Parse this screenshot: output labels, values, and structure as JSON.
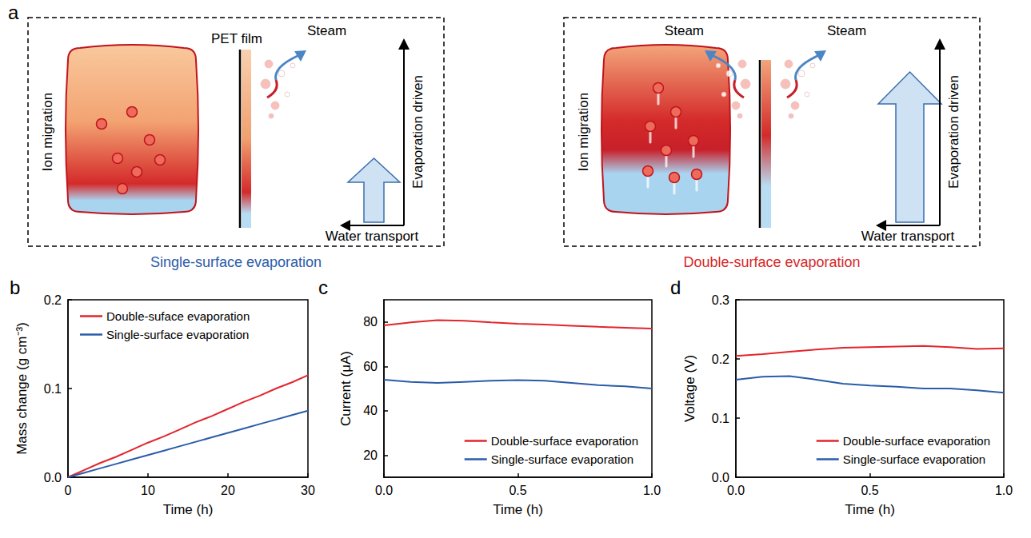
{
  "diagram": {
    "letter": "a",
    "panels": [
      {
        "caption": "Single-surface evaporation",
        "color": "#2a5caa",
        "ion_label": "Ion migration",
        "film_label": "PET film",
        "steam_labels": [
          "Steam"
        ],
        "vertical_arrow_label": "Evaporation driven",
        "horizontal_arrow_label": "Water transport"
      },
      {
        "caption": "Double-surface evaporation",
        "color": "#d62728",
        "ion_label": "Ion migration",
        "steam_labels": [
          "Steam",
          "Steam"
        ],
        "vertical_arrow_label": "Evaporation driven",
        "horizontal_arrow_label": "Water transport"
      }
    ]
  },
  "chart_data": [
    {
      "letter": "b",
      "type": "line",
      "x_label": "Time (h)",
      "y_label": "Mass change (g cm⁻³)",
      "xlim": [
        0,
        30
      ],
      "xticks": [
        0,
        10,
        20,
        30
      ],
      "ylim": [
        0,
        0.2
      ],
      "yticks": [
        {
          "value": 0,
          "label": "0.0"
        },
        {
          "value": 0.1,
          "label": "0.1"
        },
        {
          "value": 0.2,
          "label": "0.2"
        }
      ],
      "legend": "upper left",
      "x": [
        0,
        2,
        4,
        6,
        8,
        10,
        12,
        14,
        16,
        18,
        20,
        22,
        24,
        26,
        28,
        30
      ],
      "series": [
        {
          "name": "Double-suface evaporation",
          "color": "#e3242b",
          "values": [
            0,
            0.008,
            0.016,
            0.023,
            0.031,
            0.039,
            0.046,
            0.054,
            0.062,
            0.069,
            0.077,
            0.085,
            0.092,
            0.1,
            0.107,
            0.115
          ]
        },
        {
          "name": "Single-surface evaporation",
          "color": "#2a5caa",
          "values": [
            0,
            0.005,
            0.01,
            0.015,
            0.02,
            0.025,
            0.03,
            0.035,
            0.04,
            0.045,
            0.05,
            0.055,
            0.06,
            0.065,
            0.07,
            0.075
          ]
        }
      ]
    },
    {
      "letter": "c",
      "type": "line",
      "x_label": "Time (h)",
      "y_label": "Current (μA)",
      "xlim": [
        0,
        1
      ],
      "xticks": [
        {
          "value": 0,
          "label": "0.0"
        },
        {
          "value": 0.5,
          "label": "0.5"
        },
        {
          "value": 1,
          "label": "1.0"
        }
      ],
      "ylim": [
        10,
        90
      ],
      "yticks": [
        20,
        40,
        60,
        80
      ],
      "legend": "lower right",
      "x": [
        0,
        0.1,
        0.2,
        0.3,
        0.4,
        0.5,
        0.6,
        0.7,
        0.8,
        0.9,
        1
      ],
      "series": [
        {
          "name": "Double-surface evaporation",
          "color": "#e3242b",
          "values": [
            78.5,
            79.8,
            80.8,
            80.5,
            79.8,
            79.2,
            78.8,
            78.3,
            77.8,
            77.4,
            77.0
          ]
        },
        {
          "name": "Single-surface evaporation",
          "color": "#2a5caa",
          "values": [
            54.0,
            53.0,
            52.5,
            53.0,
            53.5,
            53.8,
            53.5,
            52.5,
            51.5,
            51.0,
            50.0
          ]
        }
      ]
    },
    {
      "letter": "d",
      "type": "line",
      "x_label": "Time (h)",
      "y_label": "Voltage (V)",
      "xlim": [
        0,
        1
      ],
      "xticks": [
        {
          "value": 0,
          "label": "0.0"
        },
        {
          "value": 0.5,
          "label": "0.5"
        },
        {
          "value": 1,
          "label": "1.0"
        }
      ],
      "ylim": [
        0,
        0.3
      ],
      "yticks": [
        {
          "value": 0,
          "label": "0.0"
        },
        {
          "value": 0.1,
          "label": "0.1"
        },
        {
          "value": 0.2,
          "label": "0.2"
        },
        {
          "value": 0.3,
          "label": "0.3"
        }
      ],
      "legend": "lower right",
      "x": [
        0,
        0.1,
        0.2,
        0.3,
        0.4,
        0.5,
        0.6,
        0.7,
        0.8,
        0.9,
        1
      ],
      "series": [
        {
          "name": "Double-surface evaporation",
          "color": "#e3242b",
          "values": [
            0.205,
            0.208,
            0.212,
            0.216,
            0.219,
            0.22,
            0.221,
            0.222,
            0.22,
            0.217,
            0.218
          ]
        },
        {
          "name": "Single-surface evaporation",
          "color": "#2a5caa",
          "values": [
            0.165,
            0.17,
            0.171,
            0.165,
            0.158,
            0.155,
            0.153,
            0.15,
            0.15,
            0.147,
            0.143
          ]
        }
      ]
    }
  ]
}
